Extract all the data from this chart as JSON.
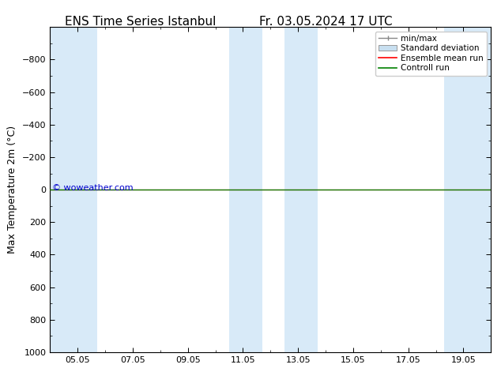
{
  "title_left": "ENS Time Series Istanbul",
  "title_right": "Fr. 03.05.2024 17 UTC",
  "ylabel": "Max Temperature 2m (°C)",
  "ylim_bottom": 1000,
  "ylim_top": -1000,
  "yticks": [
    -800,
    -600,
    -400,
    -200,
    0,
    200,
    400,
    600,
    800,
    1000
  ],
  "xlim": [
    4.0,
    20.0
  ],
  "xtick_positions": [
    5,
    7,
    9,
    11,
    13,
    15,
    17,
    19
  ],
  "xtick_labels": [
    "05.05",
    "07.05",
    "09.05",
    "11.05",
    "13.05",
    "15.05",
    "17.05",
    "19.05"
  ],
  "shaded_bands": [
    {
      "x_start": 4.0,
      "x_end": 5.7
    },
    {
      "x_start": 10.5,
      "x_end": 11.7
    },
    {
      "x_start": 12.5,
      "x_end": 13.7
    },
    {
      "x_start": 18.3,
      "x_end": 20.0
    }
  ],
  "band_color": "#d8eaf8",
  "line_color_green": "#008000",
  "line_color_red": "#ff0000",
  "line_y": 0,
  "watermark": "© woweather.com",
  "watermark_color": "#0000cc",
  "watermark_fontsize": 8,
  "background_color": "#ffffff",
  "title_fontsize": 11,
  "axis_label_fontsize": 9,
  "tick_fontsize": 8,
  "legend_fontsize": 7.5
}
